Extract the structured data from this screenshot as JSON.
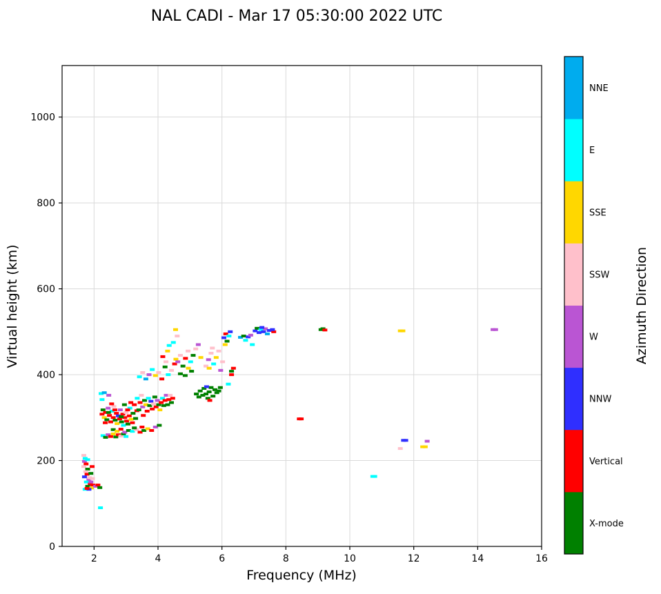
{
  "figure": {
    "title": "NAL CADI - Mar 17 05:30:00 2022 UTC"
  },
  "chart_data": {
    "type": "scatter",
    "title": "NAL CADI - Mar 17 05:30:00 2022 UTC",
    "xlabel": "Frequency (MHz)",
    "ylabel": "Virtual height (km)",
    "xlim": [
      1,
      16
    ],
    "ylim": [
      0,
      1120
    ],
    "xticks": [
      2,
      4,
      6,
      8,
      10,
      12,
      14,
      16
    ],
    "yticks": [
      0,
      200,
      400,
      600,
      800,
      1000
    ],
    "grid": true,
    "legend_position": "right-colorbar",
    "colorbar": {
      "label": "Azimuth Direction",
      "order": "bottom-to-top",
      "categories": [
        "X-mode",
        "Vertical",
        "NNW",
        "W",
        "SSW",
        "SSE",
        "E",
        "NNE"
      ],
      "colors": [
        "#008000",
        "#ff0000",
        "#2f2fff",
        "#ba55d3",
        "#ffc0cb",
        "#ffd700",
        "#00ffff",
        "#00acee"
      ]
    },
    "points_format": [
      "frequency_mhz",
      "virtual_height_km",
      "category_index"
    ],
    "points": [
      [
        1.68,
        212,
        4
      ],
      [
        1.72,
        205,
        6
      ],
      [
        1.7,
        198,
        3
      ],
      [
        1.75,
        192,
        1
      ],
      [
        1.68,
        186,
        4
      ],
      [
        1.8,
        180,
        0
      ],
      [
        1.74,
        174,
        4
      ],
      [
        1.78,
        168,
        1
      ],
      [
        1.7,
        162,
        2
      ],
      [
        1.84,
        156,
        3
      ],
      [
        1.76,
        150,
        6
      ],
      [
        1.88,
        145,
        1
      ],
      [
        1.8,
        140,
        0
      ],
      [
        1.92,
        136,
        5
      ],
      [
        1.72,
        133,
        6
      ],
      [
        1.86,
        160,
        4
      ],
      [
        1.9,
        150,
        3
      ],
      [
        1.8,
        202,
        6
      ],
      [
        1.94,
        186,
        1
      ],
      [
        1.84,
        133,
        2
      ],
      [
        1.9,
        170,
        0
      ],
      [
        1.96,
        143,
        1
      ],
      [
        1.78,
        135,
        1
      ],
      [
        1.95,
        158,
        4
      ],
      [
        2.05,
        140,
        3
      ],
      [
        2.12,
        143,
        1
      ],
      [
        2.18,
        137,
        0
      ],
      [
        2.2,
        90,
        6
      ],
      [
        2.28,
        258,
        6
      ],
      [
        2.36,
        254,
        0
      ],
      [
        2.44,
        260,
        3
      ],
      [
        2.52,
        256,
        1
      ],
      [
        2.6,
        262,
        5
      ],
      [
        2.68,
        255,
        0
      ],
      [
        2.76,
        260,
        1
      ],
      [
        2.84,
        257,
        4
      ],
      [
        2.92,
        262,
        0
      ],
      [
        3.0,
        256,
        6
      ],
      [
        2.25,
        308,
        1
      ],
      [
        2.28,
        318,
        0
      ],
      [
        2.32,
        300,
        5
      ],
      [
        2.36,
        312,
        1
      ],
      [
        2.4,
        295,
        0
      ],
      [
        2.44,
        322,
        3
      ],
      [
        2.48,
        305,
        1
      ],
      [
        2.52,
        290,
        1
      ],
      [
        2.56,
        315,
        6
      ],
      [
        2.6,
        300,
        1
      ],
      [
        2.62,
        326,
        4
      ],
      [
        2.66,
        294,
        0
      ],
      [
        2.7,
        310,
        1
      ],
      [
        2.72,
        286,
        5
      ],
      [
        2.76,
        304,
        2
      ],
      [
        2.8,
        297,
        1
      ],
      [
        2.82,
        318,
        3
      ],
      [
        2.86,
        290,
        0
      ],
      [
        2.9,
        308,
        1
      ],
      [
        2.92,
        282,
        6
      ],
      [
        2.96,
        300,
        1
      ],
      [
        3.0,
        312,
        4
      ],
      [
        3.02,
        292,
        1
      ],
      [
        3.06,
        285,
        0
      ],
      [
        3.1,
        304,
        1
      ],
      [
        3.12,
        322,
        6
      ],
      [
        3.16,
        296,
        5
      ],
      [
        3.2,
        288,
        1
      ],
      [
        3.22,
        310,
        0
      ],
      [
        3.26,
        330,
        1
      ],
      [
        3.3,
        298,
        0
      ],
      [
        3.34,
        316,
        1
      ],
      [
        3.15,
        335,
        1
      ],
      [
        2.95,
        330,
        0
      ],
      [
        2.55,
        332,
        1
      ],
      [
        2.45,
        312,
        0
      ],
      [
        2.35,
        288,
        1
      ],
      [
        2.65,
        318,
        1
      ],
      [
        2.85,
        302,
        0
      ],
      [
        3.05,
        318,
        1
      ],
      [
        2.6,
        272,
        0
      ],
      [
        2.72,
        268,
        5
      ],
      [
        2.84,
        273,
        1
      ],
      [
        2.96,
        266,
        3
      ],
      [
        3.08,
        270,
        0
      ],
      [
        3.2,
        268,
        6
      ],
      [
        3.32,
        272,
        4
      ],
      [
        3.44,
        266,
        1
      ],
      [
        3.56,
        270,
        0
      ],
      [
        3.68,
        274,
        5
      ],
      [
        3.8,
        270,
        1
      ],
      [
        3.92,
        278,
        3
      ],
      [
        4.04,
        282,
        0
      ],
      [
        3.5,
        278,
        1
      ],
      [
        3.26,
        276,
        0
      ],
      [
        2.22,
        356,
        6
      ],
      [
        2.32,
        358,
        7
      ],
      [
        2.46,
        352,
        3
      ],
      [
        2.25,
        342,
        6
      ],
      [
        3.35,
        345,
        6
      ],
      [
        3.4,
        318,
        0
      ],
      [
        3.44,
        335,
        1
      ],
      [
        3.48,
        352,
        4
      ],
      [
        3.52,
        325,
        3
      ],
      [
        3.54,
        305,
        1
      ],
      [
        3.58,
        340,
        0
      ],
      [
        3.62,
        330,
        5
      ],
      [
        3.66,
        315,
        1
      ],
      [
        3.7,
        345,
        6
      ],
      [
        3.74,
        328,
        0
      ],
      [
        3.78,
        338,
        2
      ],
      [
        3.82,
        320,
        1
      ],
      [
        3.86,
        332,
        4
      ],
      [
        3.9,
        348,
        0
      ],
      [
        3.94,
        325,
        1
      ],
      [
        3.98,
        340,
        3
      ],
      [
        4.02,
        330,
        0
      ],
      [
        4.06,
        318,
        5
      ],
      [
        4.1,
        335,
        1
      ],
      [
        4.14,
        345,
        6
      ],
      [
        4.18,
        328,
        0
      ],
      [
        4.22,
        340,
        1
      ],
      [
        4.26,
        352,
        3
      ],
      [
        4.3,
        330,
        0
      ],
      [
        4.34,
        342,
        1
      ],
      [
        4.38,
        352,
        4
      ],
      [
        4.42,
        335,
        0
      ],
      [
        4.46,
        345,
        1
      ],
      [
        3.42,
        395,
        6
      ],
      [
        3.52,
        405,
        4
      ],
      [
        3.62,
        390,
        7
      ],
      [
        3.72,
        400,
        3
      ],
      [
        3.82,
        412,
        6
      ],
      [
        3.92,
        398,
        5
      ],
      [
        4.02,
        405,
        4
      ],
      [
        4.12,
        390,
        1
      ],
      [
        4.22,
        418,
        0
      ],
      [
        4.32,
        400,
        6
      ],
      [
        4.42,
        410,
        4
      ],
      [
        4.52,
        425,
        1
      ],
      [
        4.56,
        436,
        5
      ],
      [
        4.15,
        442,
        1
      ],
      [
        4.25,
        430,
        4
      ],
      [
        4.55,
        505,
        5
      ],
      [
        4.48,
        475,
        6
      ],
      [
        4.6,
        490,
        4
      ],
      [
        4.35,
        468,
        6
      ],
      [
        4.3,
        455,
        5
      ],
      [
        4.62,
        430,
        3
      ],
      [
        4.7,
        445,
        4
      ],
      [
        4.78,
        420,
        0
      ],
      [
        4.86,
        438,
        1
      ],
      [
        4.94,
        455,
        4
      ],
      [
        5.02,
        430,
        6
      ],
      [
        5.1,
        445,
        0
      ],
      [
        5.18,
        460,
        4
      ],
      [
        5.26,
        470,
        3
      ],
      [
        5.34,
        440,
        5
      ],
      [
        4.95,
        415,
        5
      ],
      [
        5.05,
        408,
        0
      ],
      [
        4.7,
        402,
        0
      ],
      [
        4.85,
        398,
        0
      ],
      [
        5.2,
        355,
        0
      ],
      [
        5.28,
        348,
        0
      ],
      [
        5.32,
        362,
        0
      ],
      [
        5.4,
        352,
        0
      ],
      [
        5.44,
        368,
        0
      ],
      [
        5.5,
        355,
        0
      ],
      [
        5.56,
        345,
        0
      ],
      [
        5.6,
        360,
        0
      ],
      [
        5.66,
        370,
        0
      ],
      [
        5.72,
        350,
        0
      ],
      [
        5.78,
        365,
        0
      ],
      [
        5.84,
        358,
        0
      ],
      [
        5.52,
        372,
        2
      ],
      [
        5.62,
        340,
        1
      ],
      [
        5.9,
        362,
        0
      ],
      [
        5.95,
        370,
        0
      ],
      [
        5.5,
        420,
        4
      ],
      [
        5.58,
        435,
        3
      ],
      [
        5.66,
        450,
        4
      ],
      [
        5.74,
        425,
        6
      ],
      [
        5.82,
        440,
        5
      ],
      [
        5.9,
        455,
        4
      ],
      [
        5.96,
        410,
        3
      ],
      [
        6.02,
        430,
        4
      ],
      [
        5.7,
        462,
        4
      ],
      [
        5.6,
        415,
        5
      ],
      [
        6.06,
        486,
        2
      ],
      [
        6.12,
        495,
        1
      ],
      [
        6.16,
        478,
        0
      ],
      [
        6.22,
        490,
        6
      ],
      [
        6.26,
        500,
        2
      ],
      [
        6.1,
        470,
        5
      ],
      [
        6.2,
        378,
        6
      ],
      [
        6.3,
        408,
        0
      ],
      [
        6.36,
        415,
        1
      ],
      [
        6.3,
        400,
        1
      ],
      [
        6.58,
        487,
        7
      ],
      [
        6.68,
        490,
        0
      ],
      [
        6.74,
        480,
        6
      ],
      [
        6.82,
        488,
        2
      ],
      [
        6.9,
        492,
        3
      ],
      [
        6.95,
        470,
        6
      ],
      [
        7.04,
        502,
        2
      ],
      [
        7.1,
        508,
        0
      ],
      [
        7.16,
        498,
        2
      ],
      [
        7.22,
        505,
        6
      ],
      [
        7.3,
        500,
        2
      ],
      [
        7.36,
        507,
        3
      ],
      [
        7.42,
        495,
        7
      ],
      [
        7.25,
        510,
        2
      ],
      [
        7.48,
        503,
        2
      ],
      [
        7.62,
        500,
        1
      ],
      [
        7.58,
        505,
        2
      ],
      [
        8.42,
        297,
        1
      ],
      [
        8.48,
        297,
        1
      ],
      [
        9.1,
        505,
        0
      ],
      [
        9.16,
        507,
        0
      ],
      [
        9.22,
        504,
        1
      ],
      [
        10.72,
        163,
        6
      ],
      [
        10.78,
        163,
        6
      ],
      [
        11.58,
        502,
        5
      ],
      [
        11.66,
        502,
        5
      ],
      [
        11.68,
        247,
        2
      ],
      [
        11.75,
        247,
        2
      ],
      [
        11.58,
        228,
        4
      ],
      [
        12.28,
        232,
        5
      ],
      [
        12.36,
        232,
        5
      ],
      [
        12.42,
        245,
        3
      ],
      [
        14.48,
        505,
        3
      ],
      [
        14.56,
        505,
        3
      ]
    ]
  }
}
